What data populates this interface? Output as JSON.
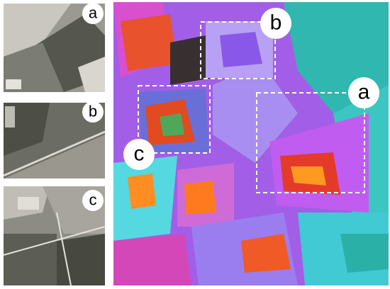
{
  "panels": [
    {
      "label": "a"
    },
    {
      "label": "b"
    },
    {
      "label": "c"
    }
  ],
  "main": {
    "callouts": [
      {
        "label": "b"
      },
      {
        "label": "a"
      },
      {
        "label": "c"
      }
    ]
  }
}
